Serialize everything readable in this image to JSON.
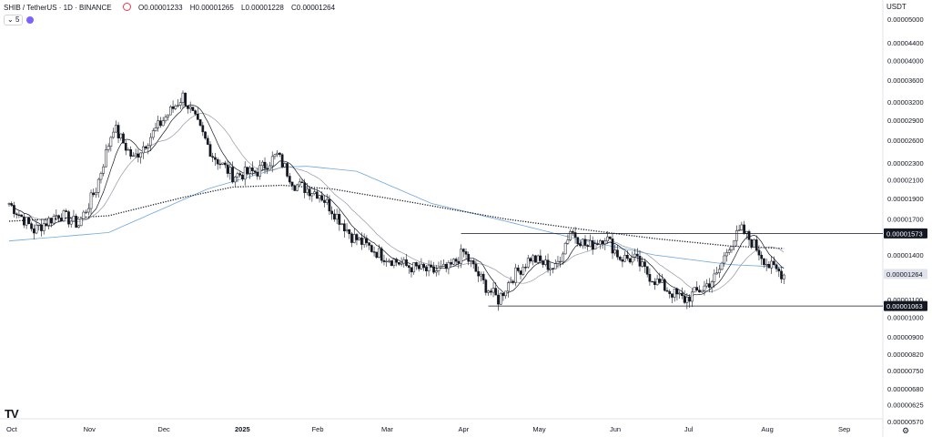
{
  "header": {
    "symbol": "SHIB / TetherUS · 1D · BINANCE",
    "open": "O0.00001233",
    "high": "H0.00001265",
    "low": "L0.00001228",
    "close": "C0.00001264",
    "indicator_count": "5",
    "currency": "USDT",
    "logo_text": "TV"
  },
  "colors": {
    "up": "#131722",
    "down": "#131722",
    "ma_fast": "#131722",
    "ma_slow": "#9598a1",
    "ma_blue": "#6fa8dc",
    "ma_dotted": "#131722",
    "label_bg": "#131722",
    "price_bg": "#e0e3eb"
  },
  "chart_data": {
    "type": "candlestick",
    "title": "SHIB / TetherUS · 1D · BINANCE",
    "y_axis_scale": "log",
    "y_ticks": [
      "0.00005000",
      "0.00004400",
      "0.00004000",
      "0.00003600",
      "0.00003200",
      "0.00002900",
      "0.00002600",
      "0.00002300",
      "0.00002100",
      "0.00001900",
      "0.00001700",
      "0.00001400",
      "0.00001100",
      "0.00001000",
      "0.00000900",
      "0.00000820",
      "0.00000750",
      "0.00000680",
      "0.00000625",
      "0.00000570"
    ],
    "y_tick_values": [
      5e-05,
      4.4e-05,
      4e-05,
      3.6e-05,
      3.2e-05,
      2.9e-05,
      2.6e-05,
      2.3e-05,
      2.1e-05,
      1.9e-05,
      1.7e-05,
      1.4e-05,
      1.1e-05,
      1e-05,
      9e-06,
      8.2e-06,
      7.5e-06,
      6.8e-06,
      6.25e-06,
      5.7e-06
    ],
    "x_ticks": [
      "Oct",
      "Nov",
      "Dec",
      "2025",
      "Feb",
      "Mar",
      "Apr",
      "May",
      "Jun",
      "Jul",
      "Aug",
      "Sep"
    ],
    "x_tick_bold": [
      "2025"
    ],
    "x_tick_days": [
      0,
      31,
      61,
      92,
      123,
      151,
      182,
      212,
      243,
      273,
      304,
      335
    ],
    "x_last_day": 312,
    "price_labels": [
      {
        "text": "0.00001573",
        "value": 1.573e-05,
        "style": "dark"
      },
      {
        "text": "0.00001264",
        "value": 1.264e-05,
        "style": "light"
      },
      {
        "text": "0.00001063",
        "value": 1.063e-05,
        "style": "dark"
      }
    ],
    "horizontal_lines": [
      {
        "value": 1.573e-05,
        "from_day": 182
      },
      {
        "value": 1.063e-05,
        "from_day": 193
      }
    ],
    "key_points": [
      [
        0,
        1.85e-05
      ],
      [
        10,
        1.6e-05
      ],
      [
        20,
        1.75e-05
      ],
      [
        28,
        1.65e-05
      ],
      [
        35,
        2e-05
      ],
      [
        42,
        2.8e-05
      ],
      [
        50,
        2.35e-05
      ],
      [
        62,
        2.9e-05
      ],
      [
        70,
        3.3e-05
      ],
      [
        75,
        2.9e-05
      ],
      [
        82,
        2.4e-05
      ],
      [
        90,
        2.15e-05
      ],
      [
        100,
        2.2e-05
      ],
      [
        108,
        2.4e-05
      ],
      [
        115,
        2.05e-05
      ],
      [
        125,
        1.95e-05
      ],
      [
        133,
        1.7e-05
      ],
      [
        138,
        1.55e-05
      ],
      [
        150,
        1.4e-05
      ],
      [
        160,
        1.32e-05
      ],
      [
        170,
        1.28e-05
      ],
      [
        177,
        1.3e-05
      ],
      [
        183,
        1.42e-05
      ],
      [
        192,
        1.18e-05
      ],
      [
        197,
        1.1e-05
      ],
      [
        202,
        1.23e-05
      ],
      [
        210,
        1.38e-05
      ],
      [
        220,
        1.3e-05
      ],
      [
        226,
        1.6e-05
      ],
      [
        233,
        1.46e-05
      ],
      [
        240,
        1.55e-05
      ],
      [
        246,
        1.38e-05
      ],
      [
        252,
        1.37e-05
      ],
      [
        258,
        1.25e-05
      ],
      [
        266,
        1.15e-05
      ],
      [
        272,
        1.1e-05
      ],
      [
        280,
        1.18e-05
      ],
      [
        285,
        1.25e-05
      ],
      [
        290,
        1.48e-05
      ],
      [
        295,
        1.6e-05
      ],
      [
        300,
        1.48e-05
      ],
      [
        306,
        1.32e-05
      ],
      [
        312,
        1.26e-05
      ]
    ],
    "ma_blue_points": [
      [
        0,
        1.51e-05
      ],
      [
        40,
        1.58e-05
      ],
      [
        80,
        2e-05
      ],
      [
        110,
        2.25e-05
      ],
      [
        120,
        2.26e-05
      ],
      [
        140,
        2.2e-05
      ],
      [
        170,
        1.85e-05
      ],
      [
        200,
        1.68e-05
      ],
      [
        230,
        1.52e-05
      ],
      [
        260,
        1.4e-05
      ],
      [
        290,
        1.33e-05
      ],
      [
        312,
        1.31e-05
      ]
    ],
    "ma_dotted_points": [
      [
        0,
        1.68e-05
      ],
      [
        40,
        1.73e-05
      ],
      [
        70,
        1.91e-05
      ],
      [
        90,
        2.02e-05
      ],
      [
        110,
        2.04e-05
      ],
      [
        130,
        2e-05
      ],
      [
        160,
        1.87e-05
      ],
      [
        200,
        1.7e-05
      ],
      [
        230,
        1.61e-05
      ],
      [
        260,
        1.53e-05
      ],
      [
        290,
        1.47e-05
      ],
      [
        312,
        1.45e-05
      ]
    ]
  }
}
